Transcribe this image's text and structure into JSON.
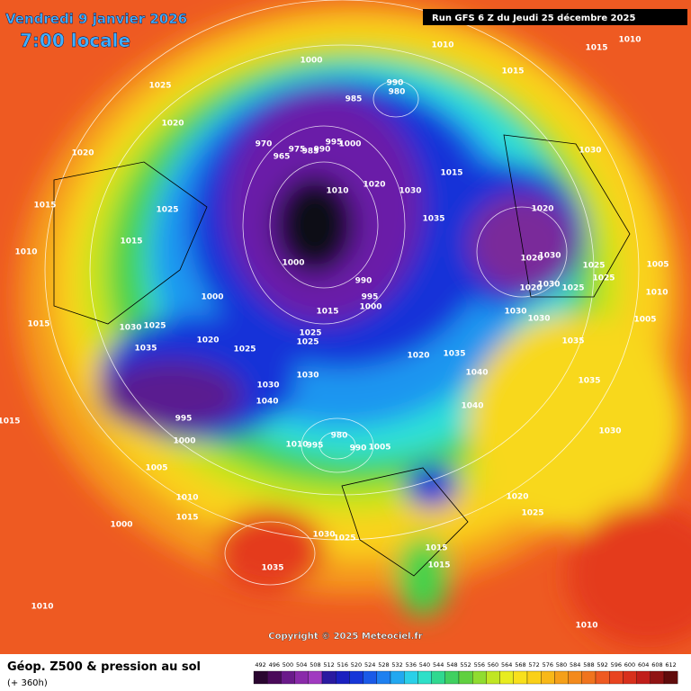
{
  "header": {
    "date": "Vendredi 9 janvier 2026",
    "time": "7:00 locale",
    "run": "Run GFS 6 Z du Jeudi 25 décembre 2025"
  },
  "copyright": "Copyright © 2025 Meteociel.fr",
  "footer": {
    "title": "Géop. Z500 & pression au sol",
    "lead": "(+ 360h)"
  },
  "legend": {
    "scale": [
      492,
      496,
      500,
      504,
      508,
      512,
      516,
      520,
      524,
      528,
      532,
      536,
      540,
      544,
      548,
      552,
      556,
      560,
      564,
      568,
      572,
      576,
      580,
      584,
      588,
      592,
      596,
      600,
      604,
      608,
      612
    ]
  },
  "isobar_labels": [
    "1010",
    "1015",
    "1010",
    "1000",
    "1015",
    "1025",
    "990",
    "980",
    "985",
    "1020",
    "970",
    "965",
    "975",
    "985",
    "990",
    "995",
    "1000",
    "1020",
    "1030",
    "1015",
    "1020",
    "1030",
    "1010",
    "1015",
    "1025",
    "1020",
    "1035",
    "1015",
    "1010",
    "1020",
    "1030",
    "1025",
    "1005",
    "1000",
    "990",
    "1025",
    "1020",
    "1030",
    "1025",
    "1010",
    "995",
    "1000",
    "1000",
    "1015",
    "1030",
    "1030",
    "1005",
    "1015",
    "1030",
    "1025",
    "1025",
    "1020",
    "1025",
    "1025",
    "1035",
    "1035",
    "1020",
    "1035",
    "1030",
    "1040",
    "1035",
    "1030",
    "1040",
    "1040",
    "995",
    "1015",
    "1030",
    "980",
    "1000",
    "1010",
    "995",
    "990",
    "1005",
    "1005",
    "1010",
    "1020",
    "1015",
    "1025",
    "1000",
    "1030",
    "1025",
    "1015",
    "1035",
    "1015",
    "1010",
    "1010"
  ]
}
